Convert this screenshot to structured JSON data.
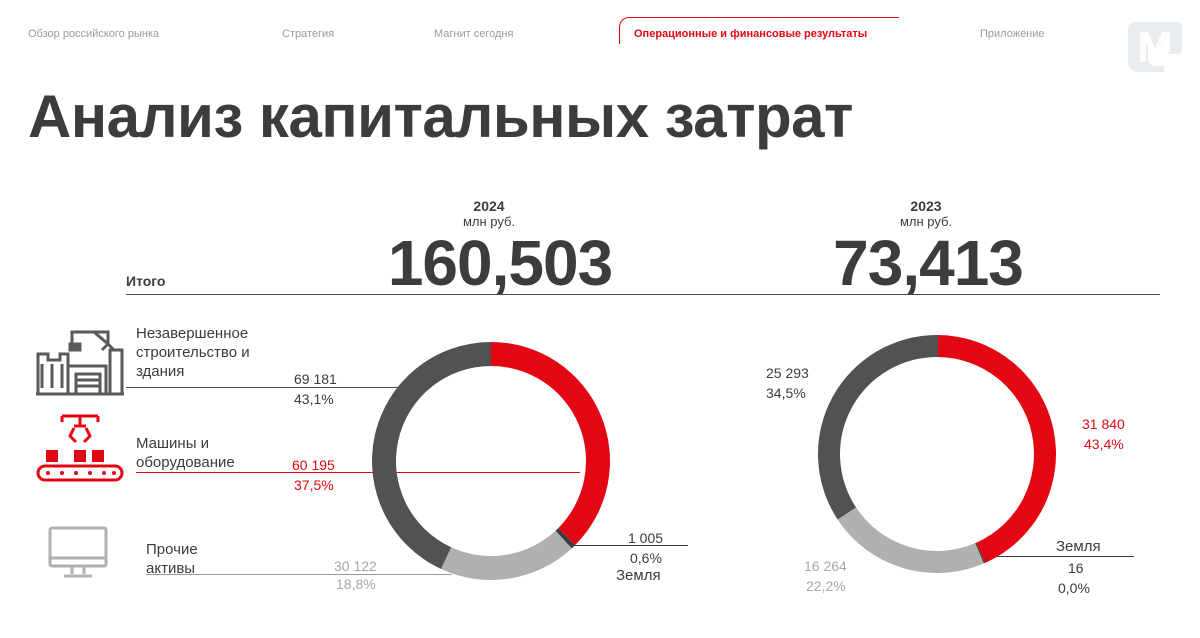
{
  "nav": {
    "items": [
      {
        "label": "Обзор российского рынка",
        "active": false
      },
      {
        "label": "Стратегия",
        "active": false
      },
      {
        "label": "Магнит сегодня",
        "active": false
      },
      {
        "label": "Операционные и финансовые результаты",
        "active": true
      },
      {
        "label": "Приложение",
        "active": false
      }
    ]
  },
  "logo": {
    "icon": "magnit-logo-icon"
  },
  "page_title": "Анализ капитальных затрат",
  "total_label": "Итого",
  "categories": [
    {
      "label": "Незавершенное строительство и здания",
      "icon": "construction-building-icon"
    },
    {
      "label": "Машины и оборудование",
      "icon": "machinery-conveyor-icon"
    },
    {
      "label": "Прочие активы",
      "icon": "computer-monitor-icon"
    },
    {
      "label": "Земля",
      "icon": ""
    }
  ],
  "colors": {
    "red": "#e30613",
    "dark_grey": "#525252",
    "light_grey": "#b0b0b0",
    "land": "#3c3c3c",
    "text": "#3c3c3c"
  },
  "chart_data": [
    {
      "type": "pie",
      "year": "2024",
      "unit": "млн руб.",
      "total": "160,503",
      "slices": [
        {
          "category": "Машины и оборудование",
          "value": 60195,
          "value_label": "60 195",
          "percent_label": "37,5%"
        },
        {
          "category": "Земля",
          "value": 1005,
          "value_label": "1 005",
          "percent_label": "0,6%"
        },
        {
          "category": "Прочие активы",
          "value": 30122,
          "value_label": "30 122",
          "percent_label": "18,8%"
        },
        {
          "category": "Незавершенное строительство и здания",
          "value": 69181,
          "value_label": "69 181",
          "percent_label": "43,1%"
        }
      ],
      "land_label": "Земля"
    },
    {
      "type": "pie",
      "year": "2023",
      "unit": "млн руб.",
      "total": "73,413",
      "slices": [
        {
          "category": "Машины и оборудование",
          "value": 31840,
          "value_label": "31 840",
          "percent_label": "43,4%"
        },
        {
          "category": "Земля",
          "value": 16,
          "value_label": "16",
          "percent_label": "0,0%"
        },
        {
          "category": "Прочие активы",
          "value": 16264,
          "value_label": "16 264",
          "percent_label": "22,2%"
        },
        {
          "category": "Незавершенное строительство и здания",
          "value": 25293,
          "value_label": "25 293",
          "percent_label": "34,5%"
        }
      ],
      "land_label": "Земля"
    }
  ]
}
